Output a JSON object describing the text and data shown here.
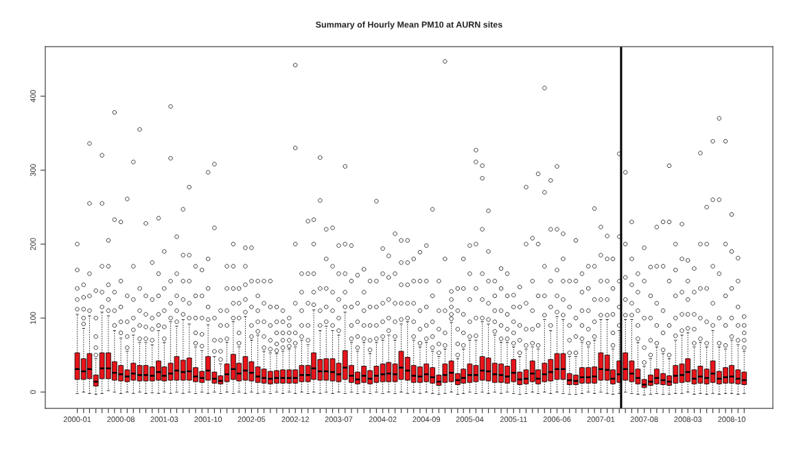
{
  "chart_data": {
    "type": "box",
    "title": "Summary of Hourly Mean PM10 at AURN sites",
    "x": [
      "2000-01",
      "2000-02",
      "2000-03",
      "2000-04",
      "2000-05",
      "2000-06",
      "2000-07",
      "2000-08",
      "2000-09",
      "2000-10",
      "2000-11",
      "2000-12",
      "2001-01",
      "2001-02",
      "2001-03",
      "2001-04",
      "2001-05",
      "2001-06",
      "2001-07",
      "2001-08",
      "2001-09",
      "2001-10",
      "2001-11",
      "2001-12",
      "2002-01",
      "2002-02",
      "2002-03",
      "2002-04",
      "2002-05",
      "2002-06",
      "2002-07",
      "2002-08",
      "2002-09",
      "2002-10",
      "2002-11",
      "2002-12",
      "2003-01",
      "2003-02",
      "2003-03",
      "2003-04",
      "2003-05",
      "2003-06",
      "2003-07",
      "2003-08",
      "2003-09",
      "2003-10",
      "2003-11",
      "2003-12",
      "2004-01",
      "2004-02",
      "2004-03",
      "2004-04",
      "2004-05",
      "2004-06",
      "2004-07",
      "2004-08",
      "2004-09",
      "2004-10",
      "2004-11",
      "2004-12",
      "2005-01",
      "2005-02",
      "2005-03",
      "2005-04",
      "2005-05",
      "2005-06",
      "2005-07",
      "2005-08",
      "2005-09",
      "2005-10",
      "2005-11",
      "2005-12",
      "2006-01",
      "2006-02",
      "2006-03",
      "2006-04",
      "2006-05",
      "2006-06",
      "2006-07",
      "2006-08",
      "2006-09",
      "2006-10",
      "2006-11",
      "2006-12",
      "2007-01",
      "2007-02",
      "2007-03",
      "2007-04",
      "2007-05",
      "2007-06",
      "2007-07",
      "2007-08",
      "2007-09",
      "2007-10",
      "2007-11",
      "2007-12",
      "2008-01",
      "2008-02",
      "2008-03",
      "2008-04",
      "2008-05",
      "2008-06",
      "2008-07",
      "2008-08",
      "2008-09",
      "2008-10",
      "2008-11",
      "2008-12"
    ],
    "series": [
      {
        "color": "#e8141a",
        "boxes": [
          {
            "low": -2,
            "q1": 17,
            "median": 31,
            "q3": 53,
            "high": 105,
            "outliers": [
              112,
              125,
              140,
              165,
              200
            ]
          },
          {
            "low": 0,
            "q1": 17,
            "median": 28,
            "q3": 45,
            "high": 86,
            "outliers": [
              92,
              100,
              112,
              128,
              145
            ]
          },
          {
            "low": -2,
            "q1": 18,
            "median": 31,
            "q3": 52,
            "high": 103,
            "outliers": [
              110,
              130,
              160,
              255,
              336
            ]
          },
          {
            "low": -3,
            "q1": 8,
            "median": 14,
            "q3": 23,
            "high": 45,
            "outliers": [
              50,
              60,
              75,
              100,
              137
            ]
          },
          {
            "low": -2,
            "q1": 18,
            "median": 32,
            "q3": 53,
            "high": 108,
            "outliers": [
              115,
              135,
              170,
              255,
              320
            ]
          },
          {
            "low": 2,
            "q1": 18,
            "median": 32,
            "q3": 53,
            "high": 103,
            "outliers": [
              110,
              125,
              145,
              170,
              205
            ]
          },
          {
            "low": 0,
            "q1": 16,
            "median": 26,
            "q3": 41,
            "high": 83,
            "outliers": [
              90,
              110,
              135,
              233,
              378
            ]
          },
          {
            "low": -2,
            "q1": 15,
            "median": 24,
            "q3": 36,
            "high": 73,
            "outliers": [
              80,
              95,
              115,
              150,
              230
            ]
          },
          {
            "low": 0,
            "q1": 14,
            "median": 21,
            "q3": 30,
            "high": 55,
            "outliers": [
              60,
              75,
              95,
              130,
              261
            ]
          },
          {
            "low": -2,
            "q1": 16,
            "median": 25,
            "q3": 39,
            "high": 77,
            "outliers": [
              84,
              100,
              125,
              170,
              311
            ]
          },
          {
            "low": 0,
            "q1": 15,
            "median": 23,
            "q3": 36,
            "high": 67,
            "outliers": [
              72,
              90,
              110,
              140,
              355
            ]
          },
          {
            "low": -2,
            "q1": 15,
            "median": 23,
            "q3": 36,
            "high": 67,
            "outliers": [
              72,
              88,
              105,
              130,
              228
            ]
          },
          {
            "low": -1,
            "q1": 15,
            "median": 22,
            "q3": 34,
            "high": 64,
            "outliers": [
              70,
              85,
              100,
              125,
              175
            ]
          },
          {
            "low": -2,
            "q1": 16,
            "median": 27,
            "q3": 42,
            "high": 83,
            "outliers": [
              90,
              105,
              130,
              160,
              235
            ]
          },
          {
            "low": 0,
            "q1": 15,
            "median": 22,
            "q3": 34,
            "high": 67,
            "outliers": [
              72,
              88,
              110,
              140,
              190
            ]
          },
          {
            "low": -2,
            "q1": 16,
            "median": 25,
            "q3": 39,
            "high": 95,
            "outliers": [
              100,
              120,
              150,
              316,
              386
            ]
          },
          {
            "low": 0,
            "q1": 16,
            "median": 29,
            "q3": 48,
            "high": 89,
            "outliers": [
              95,
              110,
              130,
              160,
              210
            ]
          },
          {
            "low": -2,
            "q1": 16,
            "median": 27,
            "q3": 43,
            "high": 98,
            "outliers": [
              105,
              125,
              150,
              185,
              247
            ]
          },
          {
            "low": 0,
            "q1": 16,
            "median": 28,
            "q3": 46,
            "high": 92,
            "outliers": [
              100,
              120,
              150,
              185,
              277
            ]
          },
          {
            "low": -2,
            "q1": 14,
            "median": 21,
            "q3": 33,
            "high": 61,
            "outliers": [
              66,
              80,
              100,
              130,
              170
            ]
          },
          {
            "low": 0,
            "q1": 13,
            "median": 19,
            "q3": 28,
            "high": 56,
            "outliers": [
              62,
              78,
              100,
              130,
              165
            ]
          },
          {
            "low": -2,
            "q1": 16,
            "median": 29,
            "q3": 48,
            "high": 91,
            "outliers": [
              98,
              115,
              140,
              180,
              297
            ]
          },
          {
            "low": 0,
            "q1": 12,
            "median": 18,
            "q3": 27,
            "high": 48,
            "outliers": [
              55,
              70,
              100,
              222,
              308
            ]
          },
          {
            "low": -2,
            "q1": 11,
            "median": 15,
            "q3": 22,
            "high": 38,
            "outliers": [
              44,
              55,
              70,
              90,
              110
            ]
          },
          {
            "low": 0,
            "q1": 14,
            "median": 24,
            "q3": 38,
            "high": 67,
            "outliers": [
              72,
              90,
              110,
              140,
              170
            ]
          },
          {
            "low": -2,
            "q1": 17,
            "median": 31,
            "q3": 51,
            "high": 95,
            "outliers": [
              100,
              120,
              140,
              170,
              200
            ]
          },
          {
            "low": 0,
            "q1": 15,
            "median": 25,
            "q3": 39,
            "high": 61,
            "outliers": [
              66,
              80,
              100,
              120,
              140
            ]
          },
          {
            "low": -2,
            "q1": 16,
            "median": 29,
            "q3": 48,
            "high": 102,
            "outliers": [
              108,
              125,
              145,
              170,
              195
            ]
          },
          {
            "low": 0,
            "q1": 15,
            "median": 26,
            "q3": 41,
            "high": 70,
            "outliers": [
              75,
              90,
              115,
              150,
              195
            ]
          },
          {
            "low": -2,
            "q1": 13,
            "median": 21,
            "q3": 34,
            "high": 77,
            "outliers": [
              82,
              95,
              110,
              130,
              150
            ]
          },
          {
            "low": 0,
            "q1": 12,
            "median": 19,
            "q3": 31,
            "high": 55,
            "outliers": [
              60,
              75,
              95,
              120,
              150
            ]
          },
          {
            "low": -2,
            "q1": 11,
            "median": 18,
            "q3": 28,
            "high": 53,
            "outliers": [
              58,
              70,
              90,
              115,
              150
            ]
          },
          {
            "low": 0,
            "q1": 12,
            "median": 19,
            "q3": 29,
            "high": 52,
            "outliers": [
              56,
              65,
              80,
              95,
              115
            ]
          },
          {
            "low": -2,
            "q1": 12,
            "median": 19,
            "q3": 30,
            "high": 55,
            "outliers": [
              60,
              70,
              80,
              95,
              110
            ]
          },
          {
            "low": 0,
            "q1": 12,
            "median": 19,
            "q3": 30,
            "high": 58,
            "outliers": [
              62,
              70,
              80,
              90,
              100
            ]
          },
          {
            "low": -2,
            "q1": 12,
            "median": 19,
            "q3": 30,
            "high": 61,
            "outliers": [
              66,
              80,
              120,
              200,
              330,
              442
            ]
          },
          {
            "low": 0,
            "q1": 14,
            "median": 23,
            "q3": 36,
            "high": 70,
            "outliers": [
              75,
              90,
              110,
              135,
              160
            ]
          },
          {
            "low": -2,
            "q1": 14,
            "median": 23,
            "q3": 36,
            "high": 64,
            "outliers": [
              70,
              90,
              120,
              160,
              231
            ]
          },
          {
            "low": 0,
            "q1": 17,
            "median": 32,
            "q3": 53,
            "high": 111,
            "outliers": [
              118,
              135,
              160,
              200,
              233
            ]
          },
          {
            "low": -2,
            "q1": 16,
            "median": 28,
            "q3": 44,
            "high": 83,
            "outliers": [
              90,
              110,
              140,
              259,
              317
            ]
          },
          {
            "low": 0,
            "q1": 16,
            "median": 28,
            "q3": 45,
            "high": 89,
            "outliers": [
              95,
              115,
              140,
              180,
              220
            ]
          },
          {
            "low": -2,
            "q1": 15,
            "median": 27,
            "q3": 45,
            "high": 83,
            "outliers": [
              90,
              110,
              135,
              170,
              222
            ]
          },
          {
            "low": 0,
            "q1": 14,
            "median": 24,
            "q3": 39,
            "high": 77,
            "outliers": [
              83,
              100,
              125,
              160,
              198
            ]
          },
          {
            "low": -2,
            "q1": 17,
            "median": 33,
            "q3": 56,
            "high": 108,
            "outliers": [
              115,
              135,
              160,
              200,
              305
            ]
          },
          {
            "low": 0,
            "q1": 13,
            "median": 22,
            "q3": 36,
            "high": 67,
            "outliers": [
              72,
              90,
              115,
              150,
              198
            ]
          },
          {
            "low": -2,
            "q1": 11,
            "median": 17,
            "q3": 27,
            "high": 55,
            "outliers": [
              60,
              75,
              95,
              120,
              158
            ]
          },
          {
            "low": 0,
            "q1": 13,
            "median": 22,
            "q3": 35,
            "high": 67,
            "outliers": [
              72,
              90,
              110,
              135,
              166
            ]
          },
          {
            "low": -2,
            "q1": 11,
            "median": 18,
            "q3": 29,
            "high": 52,
            "outliers": [
              57,
              70,
              90,
              115,
              150
            ]
          },
          {
            "low": 0,
            "q1": 13,
            "median": 22,
            "q3": 35,
            "high": 67,
            "outliers": [
              72,
              90,
              115,
              150,
              258
            ]
          },
          {
            "low": -2,
            "q1": 14,
            "median": 24,
            "q3": 38,
            "high": 70,
            "outliers": [
              75,
              95,
              120,
              160,
              194
            ]
          },
          {
            "low": 0,
            "q1": 14,
            "median": 25,
            "q3": 40,
            "high": 77,
            "outliers": [
              83,
              100,
              125,
              155,
              184
            ]
          },
          {
            "low": -2,
            "q1": 14,
            "median": 24,
            "q3": 38,
            "high": 70,
            "outliers": [
              75,
              95,
              120,
              160,
              214
            ]
          },
          {
            "low": 0,
            "q1": 17,
            "median": 33,
            "q3": 55,
            "high": 92,
            "outliers": [
              98,
              120,
              145,
              175,
              205
            ]
          },
          {
            "low": -2,
            "q1": 16,
            "median": 29,
            "q3": 47,
            "high": 95,
            "outliers": [
              100,
              120,
              145,
              175,
              205
            ]
          },
          {
            "low": 0,
            "q1": 13,
            "median": 22,
            "q3": 36,
            "high": 70,
            "outliers": [
              75,
              95,
              120,
              150,
              180
            ]
          },
          {
            "low": -2,
            "q1": 13,
            "median": 21,
            "q3": 34,
            "high": 61,
            "outliers": [
              66,
              85,
              110,
              150,
              189
            ]
          },
          {
            "low": 0,
            "q1": 14,
            "median": 24,
            "q3": 38,
            "high": 67,
            "outliers": [
              72,
              90,
              115,
              150,
              198
            ]
          },
          {
            "low": -2,
            "q1": 12,
            "median": 20,
            "q3": 33,
            "high": 55,
            "outliers": [
              60,
              75,
              95,
              130,
              247
            ]
          },
          {
            "low": -3,
            "q1": 9,
            "median": 14,
            "q3": 23,
            "high": 48,
            "outliers": [
              53,
              65,
              85,
              110,
              150
            ]
          },
          {
            "low": -2,
            "q1": 13,
            "median": 23,
            "q3": 38,
            "high": 58,
            "outliers": [
              63,
              80,
              110,
              180,
              447
            ]
          },
          {
            "low": 0,
            "q1": 14,
            "median": 26,
            "q3": 42,
            "high": 94,
            "outliers": [
              99,
              105,
              115,
              125,
              136
            ]
          },
          {
            "low": -3,
            "q1": 10,
            "median": 16,
            "q3": 25,
            "high": 45,
            "outliers": [
              50,
              65,
              85,
              110,
              140
            ]
          },
          {
            "low": -2,
            "q1": 12,
            "median": 19,
            "q3": 31,
            "high": 58,
            "outliers": [
              63,
              80,
              105,
              140,
              180
            ]
          },
          {
            "low": 0,
            "q1": 13,
            "median": 23,
            "q3": 38,
            "high": 70,
            "outliers": [
              75,
              95,
              125,
              160,
              198
            ]
          },
          {
            "low": -2,
            "q1": 14,
            "median": 23,
            "q3": 36,
            "high": 70,
            "outliers": [
              76,
              100,
              140,
              200,
              311,
              327
            ]
          },
          {
            "low": 0,
            "q1": 16,
            "median": 29,
            "q3": 48,
            "high": 95,
            "outliers": [
              100,
              125,
              160,
              220,
              289,
              306
            ]
          },
          {
            "low": -2,
            "q1": 15,
            "median": 28,
            "q3": 46,
            "high": 92,
            "outliers": [
              98,
              120,
              150,
              190,
              245
            ]
          },
          {
            "low": 0,
            "q1": 13,
            "median": 24,
            "q3": 39,
            "high": 77,
            "outliers": [
              82,
              95,
              110,
              130,
              150
            ]
          },
          {
            "low": -2,
            "q1": 13,
            "median": 23,
            "q3": 38,
            "high": 67,
            "outliers": [
              72,
              90,
              110,
              140,
              167
            ]
          },
          {
            "low": 0,
            "q1": 12,
            "median": 21,
            "q3": 35,
            "high": 67,
            "outliers": [
              72,
              85,
              105,
              130,
              160
            ]
          },
          {
            "low": -2,
            "q1": 14,
            "median": 26,
            "q3": 44,
            "high": 61,
            "outliers": [
              66,
              80,
              95,
              115,
              131
            ]
          },
          {
            "low": -3,
            "q1": 10,
            "median": 17,
            "q3": 27,
            "high": 48,
            "outliers": [
              53,
              70,
              90,
              115,
              142
            ]
          },
          {
            "low": -2,
            "q1": 11,
            "median": 18,
            "q3": 30,
            "high": 58,
            "outliers": [
              63,
              85,
              120,
              200,
              277
            ]
          },
          {
            "low": 0,
            "q1": 14,
            "median": 25,
            "q3": 42,
            "high": 61,
            "outliers": [
              66,
              85,
              110,
              150,
              208
            ]
          },
          {
            "low": -2,
            "q1": 11,
            "median": 18,
            "q3": 30,
            "high": 58,
            "outliers": [
              63,
              90,
              130,
              200,
              295
            ]
          },
          {
            "low": 0,
            "q1": 14,
            "median": 24,
            "q3": 39,
            "high": 98,
            "outliers": [
              104,
              130,
              170,
              270,
              411
            ]
          },
          {
            "low": -2,
            "q1": 15,
            "median": 27,
            "q3": 44,
            "high": 83,
            "outliers": [
              90,
              115,
              150,
              220,
              286
            ]
          },
          {
            "low": 0,
            "q1": 17,
            "median": 31,
            "q3": 52,
            "high": 102,
            "outliers": [
              108,
              130,
              165,
              220,
              305
            ]
          },
          {
            "low": -2,
            "q1": 17,
            "median": 31,
            "q3": 52,
            "high": 98,
            "outliers": [
              104,
              125,
              150,
              180,
              214
            ]
          },
          {
            "low": -3,
            "q1": 10,
            "median": 16,
            "q3": 25,
            "high": 48,
            "outliers": [
              53,
              70,
              90,
              115,
              150
            ]
          },
          {
            "low": -3,
            "q1": 10,
            "median": 15,
            "q3": 23,
            "high": 48,
            "outliers": [
              53,
              75,
              100,
              150,
              205
            ]
          },
          {
            "low": -2,
            "q1": 12,
            "median": 20,
            "q3": 33,
            "high": 67,
            "outliers": [
              72,
              90,
              110,
              135,
              160
            ]
          },
          {
            "low": 0,
            "q1": 12,
            "median": 20,
            "q3": 33,
            "high": 61,
            "outliers": [
              66,
              85,
              110,
              140,
              170
            ]
          },
          {
            "low": -2,
            "q1": 12,
            "median": 21,
            "q3": 34,
            "high": 70,
            "outliers": [
              75,
              95,
              125,
              170,
              248
            ]
          },
          {
            "low": 0,
            "q1": 16,
            "median": 31,
            "q3": 53,
            "high": 98,
            "outliers": [
              104,
              125,
              150,
              185,
              223
            ]
          },
          {
            "low": -2,
            "q1": 16,
            "median": 30,
            "q3": 50,
            "high": 98,
            "outliers": [
              104,
              125,
              150,
              180,
              211
            ]
          },
          {
            "low": -3,
            "q1": 11,
            "median": 18,
            "q3": 30,
            "high": 58,
            "outliers": [
              63,
              80,
              105,
              140,
              180
            ]
          },
          {
            "low": -2,
            "q1": 13,
            "median": 24,
            "q3": 42,
            "high": 83,
            "outliers": [
              90,
              115,
              150,
              210,
              322
            ]
          },
          {
            "low": 0,
            "q1": 16,
            "median": 31,
            "q3": 53,
            "high": 98,
            "outliers": [
              104,
              125,
              155,
              200,
              297
            ]
          },
          {
            "low": -2,
            "q1": 14,
            "median": 25,
            "q3": 42,
            "high": 98,
            "outliers": [
              104,
              120,
              145,
              180,
              230
            ]
          },
          {
            "low": -3,
            "q1": 11,
            "median": 19,
            "q3": 31,
            "high": 67,
            "outliers": [
              72,
              90,
              110,
              135,
              160
            ]
          },
          {
            "low": -4,
            "q1": 6,
            "median": 10,
            "q3": 17,
            "high": 35,
            "outliers": [
              40,
              60,
              100,
              150,
              195
            ]
          },
          {
            "low": -3,
            "q1": 9,
            "median": 14,
            "q3": 23,
            "high": 45,
            "outliers": [
              50,
              70,
              100,
              130,
              169
            ]
          },
          {
            "low": -2,
            "q1": 11,
            "median": 19,
            "q3": 31,
            "high": 61,
            "outliers": [
              66,
              90,
              120,
              170,
              223
            ]
          },
          {
            "low": -3,
            "q1": 10,
            "median": 16,
            "q3": 25,
            "high": 52,
            "outliers": [
              57,
              80,
              110,
              170,
              230
            ]
          },
          {
            "low": -3,
            "q1": 9,
            "median": 14,
            "q3": 22,
            "high": 45,
            "outliers": [
              50,
              90,
              150,
              230,
              306
            ]
          },
          {
            "low": -2,
            "q1": 12,
            "median": 22,
            "q3": 36,
            "high": 70,
            "outliers": [
              76,
              100,
              130,
              165,
              200
            ]
          },
          {
            "low": -2,
            "q1": 13,
            "median": 23,
            "q3": 38,
            "high": 77,
            "outliers": [
              83,
              105,
              135,
              180,
              227
            ]
          },
          {
            "low": 0,
            "q1": 14,
            "median": 27,
            "q3": 45,
            "high": 80,
            "outliers": [
              86,
              105,
              125,
              150,
              178
            ]
          },
          {
            "low": -3,
            "q1": 11,
            "median": 18,
            "q3": 30,
            "high": 61,
            "outliers": [
              66,
              85,
              105,
              135,
              167
            ]
          },
          {
            "low": -2,
            "q1": 12,
            "median": 21,
            "q3": 35,
            "high": 67,
            "outliers": [
              72,
              100,
              140,
              200,
              323
            ]
          },
          {
            "low": -3,
            "q1": 11,
            "median": 19,
            "q3": 31,
            "high": 61,
            "outliers": [
              66,
              95,
              140,
              200,
              250
            ]
          },
          {
            "low": -2,
            "q1": 13,
            "median": 25,
            "q3": 42,
            "high": 83,
            "outliers": [
              90,
              120,
              170,
              260,
              339
            ]
          },
          {
            "low": -3,
            "q1": 11,
            "median": 18,
            "q3": 28,
            "high": 61,
            "outliers": [
              66,
              100,
              160,
              260,
              370
            ]
          },
          {
            "low": -2,
            "q1": 12,
            "median": 20,
            "q3": 33,
            "high": 58,
            "outliers": [
              63,
              90,
              130,
              200,
              339
            ]
          },
          {
            "low": -2,
            "q1": 12,
            "median": 21,
            "q3": 36,
            "high": 70,
            "outliers": [
              75,
              100,
              140,
              190,
              240
            ]
          },
          {
            "low": -3,
            "q1": 11,
            "median": 18,
            "q3": 30,
            "high": 64,
            "outliers": [
              70,
              90,
              115,
              150,
              181
            ]
          },
          {
            "low": -2,
            "q1": 10,
            "median": 16,
            "q3": 27,
            "high": 55,
            "outliers": [
              60,
              70,
              80,
              90,
              102
            ]
          }
        ]
      }
    ],
    "xlim": [
      "1999-07-29",
      "2009-04-20"
    ],
    "xticks": [
      {
        "value": "2000-01",
        "label": "2000-01"
      },
      {
        "value": "2000-02",
        "label": null
      },
      {
        "value": "2000-03",
        "label": null
      },
      {
        "value": "2000-04",
        "label": null
      },
      {
        "value": "2000-05",
        "label": null
      },
      {
        "value": "2000-06",
        "label": null
      },
      {
        "value": "2000-07",
        "label": null
      },
      {
        "value": "2000-08",
        "label": "2000-08"
      },
      {
        "value": "2000-09",
        "label": null
      },
      {
        "value": "2000-10",
        "label": null
      },
      {
        "value": "2000-11",
        "label": null
      },
      {
        "value": "2000-12",
        "label": null
      },
      {
        "value": "2001-01",
        "label": null
      },
      {
        "value": "2001-02",
        "label": null
      },
      {
        "value": "2001-03",
        "label": "2001-03"
      },
      {
        "value": "2001-04",
        "label": null
      },
      {
        "value": "2001-05",
        "label": null
      },
      {
        "value": "2001-06",
        "label": null
      },
      {
        "value": "2001-07",
        "label": null
      },
      {
        "value": "2001-08",
        "label": null
      },
      {
        "value": "2001-09",
        "label": null
      },
      {
        "value": "2001-10",
        "label": "2001-10"
      },
      {
        "value": "2001-11",
        "label": null
      },
      {
        "value": "2001-12",
        "label": null
      },
      {
        "value": "2002-01",
        "label": null
      },
      {
        "value": "2002-02",
        "label": null
      },
      {
        "value": "2002-03",
        "label": null
      },
      {
        "value": "2002-04",
        "label": null
      },
      {
        "value": "2002-05",
        "label": "2002-05"
      },
      {
        "value": "2002-06",
        "label": null
      },
      {
        "value": "2002-07",
        "label": null
      },
      {
        "value": "2002-08",
        "label": null
      },
      {
        "value": "2002-09",
        "label": null
      },
      {
        "value": "2002-10",
        "label": null
      },
      {
        "value": "2002-11",
        "label": null
      },
      {
        "value": "2002-12",
        "label": "2002-12"
      },
      {
        "value": "2003-01",
        "label": null
      },
      {
        "value": "2003-02",
        "label": null
      },
      {
        "value": "2003-03",
        "label": null
      },
      {
        "value": "2003-04",
        "label": null
      },
      {
        "value": "2003-05",
        "label": null
      },
      {
        "value": "2003-06",
        "label": null
      },
      {
        "value": "2003-07",
        "label": "2003-07"
      },
      {
        "value": "2003-08",
        "label": null
      },
      {
        "value": "2003-09",
        "label": null
      },
      {
        "value": "2003-10",
        "label": null
      },
      {
        "value": "2003-11",
        "label": null
      },
      {
        "value": "2003-12",
        "label": null
      },
      {
        "value": "2004-01",
        "label": null
      },
      {
        "value": "2004-02",
        "label": "2004-02"
      },
      {
        "value": "2004-03",
        "label": null
      },
      {
        "value": "2004-04",
        "label": null
      },
      {
        "value": "2004-05",
        "label": null
      },
      {
        "value": "2004-06",
        "label": null
      },
      {
        "value": "2004-07",
        "label": null
      },
      {
        "value": "2004-08",
        "label": null
      },
      {
        "value": "2004-09",
        "label": "2004-09"
      },
      {
        "value": "2004-10",
        "label": null
      },
      {
        "value": "2004-11",
        "label": null
      },
      {
        "value": "2004-12",
        "label": null
      },
      {
        "value": "2005-01",
        "label": null
      },
      {
        "value": "2005-02",
        "label": null
      },
      {
        "value": "2005-03",
        "label": null
      },
      {
        "value": "2005-04",
        "label": "2005-04"
      },
      {
        "value": "2005-05",
        "label": null
      },
      {
        "value": "2005-06",
        "label": null
      },
      {
        "value": "2005-07",
        "label": null
      },
      {
        "value": "2005-08",
        "label": null
      },
      {
        "value": "2005-09",
        "label": null
      },
      {
        "value": "2005-10",
        "label": null
      },
      {
        "value": "2005-11",
        "label": "2005-11"
      },
      {
        "value": "2005-12",
        "label": null
      },
      {
        "value": "2006-01",
        "label": null
      },
      {
        "value": "2006-02",
        "label": null
      },
      {
        "value": "2006-03",
        "label": null
      },
      {
        "value": "2006-04",
        "label": null
      },
      {
        "value": "2006-05",
        "label": null
      },
      {
        "value": "2006-06",
        "label": "2006-06"
      },
      {
        "value": "2006-07",
        "label": null
      },
      {
        "value": "2006-08",
        "label": null
      },
      {
        "value": "2006-09",
        "label": null
      },
      {
        "value": "2006-10",
        "label": null
      },
      {
        "value": "2006-11",
        "label": null
      },
      {
        "value": "2006-12",
        "label": null
      },
      {
        "value": "2007-01",
        "label": "2007-01"
      },
      {
        "value": "2007-02",
        "label": null
      },
      {
        "value": "2007-03",
        "label": null
      },
      {
        "value": "2007-04",
        "label": null
      },
      {
        "value": "2007-05",
        "label": null
      },
      {
        "value": "2007-06",
        "label": null
      },
      {
        "value": "2007-07",
        "label": null
      },
      {
        "value": "2007-08",
        "label": "2007-08"
      },
      {
        "value": "2007-09",
        "label": null
      },
      {
        "value": "2007-10",
        "label": null
      },
      {
        "value": "2007-11",
        "label": null
      },
      {
        "value": "2007-12",
        "label": null
      },
      {
        "value": "2008-01",
        "label": null
      },
      {
        "value": "2008-02",
        "label": null
      },
      {
        "value": "2008-03",
        "label": "2008-03"
      },
      {
        "value": "2008-04",
        "label": null
      },
      {
        "value": "2008-05",
        "label": null
      },
      {
        "value": "2008-06",
        "label": null
      },
      {
        "value": "2008-07",
        "label": null
      },
      {
        "value": "2008-08",
        "label": null
      },
      {
        "value": "2008-09",
        "label": null
      },
      {
        "value": "2008-10",
        "label": "2008-10"
      },
      {
        "value": "2008-11",
        "label": null
      },
      {
        "value": "2008-12",
        "label": null
      }
    ],
    "ylim": [
      -22,
      467
    ],
    "yticks": [
      0,
      100,
      200,
      300,
      400
    ],
    "ref_lines": [
      {
        "axis": "x",
        "value": "2007-04-10",
        "color": "#000000"
      }
    ]
  }
}
